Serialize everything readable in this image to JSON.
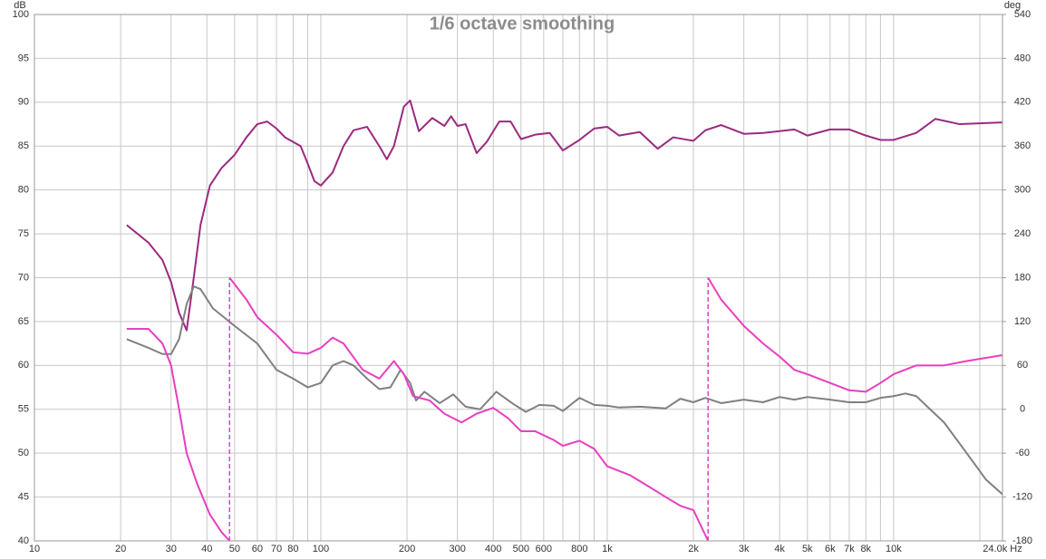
{
  "chart_data": {
    "type": "line",
    "title": "1/6 octave smoothing",
    "ylabel": "dB",
    "y2label": "deg",
    "xscale": "log",
    "grid": true,
    "xlim": [
      10,
      24000
    ],
    "ylim": [
      40,
      100
    ],
    "y2lim": [
      -180,
      540
    ],
    "xticks": [
      10,
      20,
      30,
      40,
      50,
      60,
      70,
      80,
      {
        "value": 90,
        "label": null
      },
      100,
      200,
      300,
      400,
      500,
      600,
      {
        "value": 700,
        "label": null
      },
      800,
      {
        "value": 900,
        "label": null
      },
      {
        "value": 1000,
        "label": "1k"
      },
      {
        "value": 2000,
        "label": "2k"
      },
      {
        "value": 3000,
        "label": "3k"
      },
      {
        "value": 4000,
        "label": "4k"
      },
      {
        "value": 5000,
        "label": "5k"
      },
      {
        "value": 6000,
        "label": "6k"
      },
      {
        "value": 7000,
        "label": "7k"
      },
      {
        "value": 8000,
        "label": "8k"
      },
      {
        "value": 9000,
        "label": null
      },
      {
        "value": 10000,
        "label": "10k"
      },
      {
        "value": 20000,
        "label": null
      },
      {
        "value": 24000,
        "label": "24.0k Hz"
      }
    ],
    "yticks": [
      40,
      45,
      50,
      55,
      60,
      65,
      70,
      75,
      80,
      85,
      90,
      95,
      100
    ],
    "y2ticks": [
      -180,
      -120,
      -60,
      0,
      60,
      120,
      180,
      240,
      300,
      360,
      420,
      480,
      540
    ],
    "series": [
      {
        "color": "#9b2a80",
        "axis": "y",
        "x": [
          21,
          25,
          28,
          30,
          32,
          34,
          36,
          38,
          41,
          45,
          50,
          55,
          60,
          65,
          70,
          75,
          85,
          90,
          95,
          100,
          110,
          120,
          130,
          145,
          160,
          170,
          180,
          195,
          205,
          220,
          245,
          270,
          285,
          300,
          320,
          350,
          380,
          420,
          460,
          500,
          560,
          630,
          700,
          800,
          900,
          1000,
          1100,
          1300,
          1500,
          1700,
          2000,
          2200,
          2500,
          3000,
          3500,
          4000,
          4500,
          5000,
          6000,
          7000,
          8000,
          9000,
          10000,
          12000,
          14000,
          17000,
          24000
        ],
        "values": [
          76,
          74,
          72,
          69.5,
          66,
          64,
          70,
          76,
          80.5,
          82.5,
          84,
          86,
          87.5,
          87.8,
          87,
          86,
          85,
          83,
          81,
          80.5,
          82,
          85,
          86.8,
          87.2,
          85,
          83.5,
          85,
          89.5,
          90.2,
          86.7,
          88.2,
          87.3,
          88.4,
          87.3,
          87.5,
          84.2,
          85.5,
          87.8,
          87.8,
          85.8,
          86.3,
          86.5,
          84.5,
          85.7,
          87,
          87.2,
          86.2,
          86.6,
          84.7,
          86,
          85.6,
          86.8,
          87.4,
          86.4,
          86.5,
          86.7,
          86.9,
          86.2,
          86.9,
          86.9,
          86.2,
          85.7,
          85.7,
          86.5,
          88.1,
          87.5,
          87.7
        ]
      },
      {
        "color": "#808080",
        "axis": "y",
        "x": [
          21,
          25,
          28,
          30,
          32,
          34,
          36,
          38,
          42,
          50,
          60,
          70,
          80,
          90,
          100,
          110,
          120,
          130,
          145,
          160,
          175,
          190,
          205,
          215,
          230,
          260,
          290,
          320,
          360,
          410,
          470,
          520,
          580,
          650,
          700,
          800,
          900,
          1000,
          1100,
          1300,
          1600,
          1800,
          2000,
          2200,
          2500,
          3000,
          3500,
          4000,
          4500,
          5000,
          6000,
          7000,
          8000,
          9000,
          10000,
          11000,
          12000,
          15000,
          18000,
          21000,
          24000
        ],
        "values": [
          63,
          62,
          61.3,
          61.3,
          63,
          67,
          69,
          68.7,
          66.5,
          64.5,
          62.5,
          59.5,
          58.5,
          57.5,
          58,
          60,
          60.5,
          60,
          58.5,
          57.3,
          57.5,
          59.5,
          58,
          56,
          57,
          55.7,
          56.7,
          55.3,
          55,
          57,
          55.6,
          54.7,
          55.5,
          55.4,
          54.8,
          56.3,
          55.5,
          55.4,
          55.2,
          55.3,
          55.1,
          56.2,
          55.8,
          56.3,
          55.7,
          56.1,
          55.8,
          56.4,
          56.1,
          56.4,
          56.1,
          55.8,
          55.8,
          56.3,
          56.5,
          56.8,
          56.5,
          53.5,
          50,
          47,
          45.3
        ]
      },
      {
        "color": "#e83fbf",
        "axis": "y2",
        "x": [
          21,
          25,
          28,
          30,
          32,
          34,
          37,
          41,
          45,
          48,
          48,
          48,
          55,
          60,
          70,
          80,
          90,
          100,
          110,
          120,
          140,
          160,
          180,
          195,
          210,
          240,
          270,
          310,
          350,
          400,
          450,
          500,
          560,
          650,
          700,
          800,
          900,
          1000,
          1200,
          1400,
          1600,
          1800,
          2000,
          2250,
          2250,
          2250,
          2500,
          3000,
          3500,
          4000,
          4500,
          5000,
          6000,
          7000,
          8000,
          9000,
          10000,
          12000,
          15000,
          18000,
          24000
        ],
        "values": [
          110,
          110,
          90,
          60,
          0,
          -60,
          -102,
          -144,
          -168,
          -180,
          null,
          180,
          150,
          126,
          102,
          78,
          76,
          84,
          98,
          90,
          54,
          42,
          66,
          48,
          18,
          12,
          -6,
          -18,
          -6,
          2,
          -12,
          -30,
          -30,
          -42,
          -50,
          -43,
          -54,
          -78,
          -90,
          -106,
          -120,
          -132,
          -138,
          -180,
          null,
          180,
          150,
          114,
          90,
          72,
          54,
          48,
          36,
          26,
          24,
          36,
          48,
          60,
          60,
          66,
          74
        ]
      }
    ]
  }
}
